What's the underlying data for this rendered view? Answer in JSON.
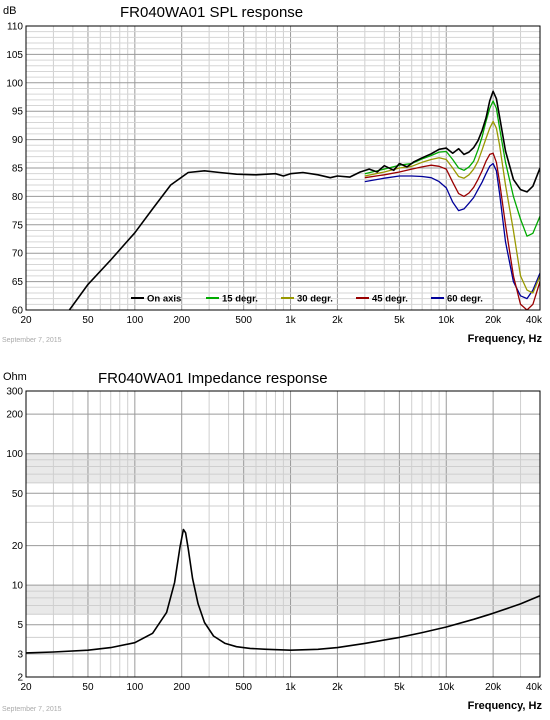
{
  "chart_data": [
    {
      "type": "line",
      "title": "FR040WA01     SPL response",
      "ylabel": "dB",
      "xlabel": "Frequency, Hz",
      "xscale": "log",
      "xlim": [
        20,
        40000
      ],
      "ylim": [
        60,
        110
      ],
      "x_ticks": [
        20,
        50,
        100,
        200,
        500,
        1000,
        2000,
        5000,
        10000,
        20000,
        40000
      ],
      "x_tick_labels": [
        "20",
        "50",
        "100",
        "200",
        "500",
        "1k",
        "2k",
        "5k",
        "10k",
        "20k",
        "40k"
      ],
      "y_ticks": [
        60,
        65,
        70,
        75,
        80,
        85,
        90,
        95,
        100,
        105,
        110
      ],
      "y_tick_labels": [
        "60",
        "65",
        "70",
        "75",
        "80",
        "85",
        "90",
        "95",
        "100",
        "105",
        "110"
      ],
      "date_label": "September 7, 2015",
      "legend_position": "bottom-center",
      "series": [
        {
          "name": "On axis",
          "color": "#000000",
          "x": [
            38,
            50,
            70,
            100,
            130,
            170,
            220,
            280,
            350,
            450,
            600,
            800,
            900,
            1000,
            1200,
            1500,
            1800,
            2000,
            2400,
            2800,
            3200,
            3600,
            4000,
            4600,
            5000,
            5600,
            6200,
            7000,
            8000,
            9000,
            10000,
            11000,
            12000,
            13000,
            14000,
            15000,
            16000,
            17000,
            18000,
            19000,
            20000,
            21000,
            22000,
            24000,
            27000,
            30000,
            33000,
            36000,
            40000
          ],
          "y": [
            60,
            64.5,
            68.8,
            73.6,
            77.8,
            82,
            84.2,
            84.5,
            84.2,
            83.9,
            83.8,
            84,
            83.6,
            84,
            84.2,
            83.8,
            83.3,
            83.6,
            83.4,
            84.3,
            84.8,
            84.3,
            85.4,
            84.6,
            85.8,
            85.2,
            86.1,
            86.8,
            87.5,
            88.3,
            88.5,
            87.6,
            88.4,
            87.4,
            87.8,
            88.6,
            89.8,
            91.6,
            93.8,
            96.8,
            98.5,
            97.2,
            94,
            88,
            83,
            81.2,
            80.8,
            81.8,
            85
          ]
        },
        {
          "name": "15 degr.",
          "color": "#00aa00",
          "x": [
            3000,
            4000,
            5000,
            6000,
            7000,
            8000,
            9000,
            10000,
            11000,
            12000,
            13000,
            14000,
            15000,
            16000,
            17000,
            18000,
            19000,
            20000,
            21000,
            22000,
            24000,
            27000,
            30000,
            33000,
            36000,
            40000
          ],
          "y": [
            84,
            84.8,
            85.5,
            85.8,
            86.6,
            87.2,
            87.8,
            87.9,
            86.5,
            85,
            84.6,
            85.2,
            86.2,
            88.2,
            90.5,
            93.2,
            95.5,
            96.8,
            95.5,
            92,
            86,
            80,
            76,
            73,
            73.5,
            76.5
          ]
        },
        {
          "name": "30 degr.",
          "color": "#999900",
          "x": [
            3000,
            4000,
            5000,
            6000,
            7000,
            8000,
            9000,
            10000,
            11000,
            12000,
            13000,
            14000,
            15000,
            16000,
            17000,
            18000,
            19000,
            20000,
            21000,
            22000,
            24000,
            27000,
            30000,
            33000,
            36000,
            40000
          ],
          "y": [
            83.6,
            84.3,
            85,
            85.3,
            86,
            86.5,
            86.8,
            86.5,
            85,
            83.5,
            83.2,
            83.8,
            84.8,
            86.2,
            88.2,
            90.2,
            92,
            93.2,
            92,
            89,
            82,
            74,
            66,
            63.5,
            63,
            66
          ]
        },
        {
          "name": "45 degr.",
          "color": "#990000",
          "x": [
            3000,
            4000,
            5000,
            6000,
            7000,
            8000,
            9000,
            10000,
            11000,
            12000,
            13000,
            14000,
            15000,
            16000,
            17000,
            18000,
            19000,
            20000,
            21000,
            22000,
            24000,
            27000,
            30000,
            33000,
            36000,
            40000
          ],
          "y": [
            83.3,
            83.8,
            84.3,
            84.8,
            85.2,
            85.5,
            85.3,
            84.8,
            82.5,
            80.5,
            80,
            80.6,
            81.6,
            83,
            84.5,
            86.2,
            87.4,
            87.6,
            86,
            82.5,
            75,
            66,
            61,
            60,
            61,
            65
          ]
        },
        {
          "name": "60 degr.",
          "color": "#000099",
          "x": [
            3000,
            4000,
            5000,
            6000,
            7000,
            8000,
            9000,
            10000,
            11000,
            12000,
            13000,
            14000,
            15000,
            16000,
            17000,
            18000,
            19000,
            20000,
            21000,
            22000,
            24000,
            27000,
            30000,
            33000,
            36000,
            40000
          ],
          "y": [
            82.6,
            83.2,
            83.6,
            83.6,
            83.5,
            83.3,
            82.6,
            81.5,
            79,
            77.5,
            77.8,
            78.8,
            79.8,
            81.2,
            82.5,
            84,
            85.3,
            85.8,
            84.5,
            80.5,
            72,
            65,
            62.5,
            62,
            63.5,
            66.5
          ]
        }
      ]
    },
    {
      "type": "line",
      "title": "FR040WA01     Impedance response",
      "ylabel": "Ohm",
      "xlabel": "Frequency, Hz",
      "xscale": "log",
      "yscale": "log",
      "xlim": [
        20,
        40000
      ],
      "ylim": [
        2,
        300
      ],
      "x_ticks": [
        20,
        50,
        100,
        200,
        500,
        1000,
        2000,
        5000,
        10000,
        20000,
        40000
      ],
      "x_tick_labels": [
        "20",
        "50",
        "100",
        "200",
        "500",
        "1k",
        "2k",
        "5k",
        "10k",
        "20k",
        "40k"
      ],
      "y_ticks": [
        2,
        3,
        5,
        10,
        20,
        50,
        100,
        200,
        300
      ],
      "y_tick_labels": [
        "2",
        "3",
        "5",
        "10",
        "20",
        "50",
        "100",
        "200",
        "300"
      ],
      "date_label": "September 7, 2015",
      "series": [
        {
          "name": "",
          "color": "#000000",
          "x": [
            20,
            30,
            50,
            70,
            100,
            130,
            160,
            180,
            195,
            205,
            212,
            220,
            235,
            255,
            280,
            320,
            380,
            450,
            550,
            700,
            1000,
            1500,
            2000,
            3000,
            5000,
            7000,
            10000,
            15000,
            20000,
            30000,
            40000
          ],
          "y": [
            3.05,
            3.1,
            3.2,
            3.35,
            3.65,
            4.3,
            6.2,
            10.5,
            19.5,
            26.5,
            25,
            19,
            11.2,
            7.2,
            5.2,
            4.1,
            3.6,
            3.4,
            3.3,
            3.25,
            3.2,
            3.25,
            3.35,
            3.6,
            4.0,
            4.35,
            4.8,
            5.5,
            6.1,
            7.2,
            8.3
          ]
        }
      ]
    }
  ]
}
